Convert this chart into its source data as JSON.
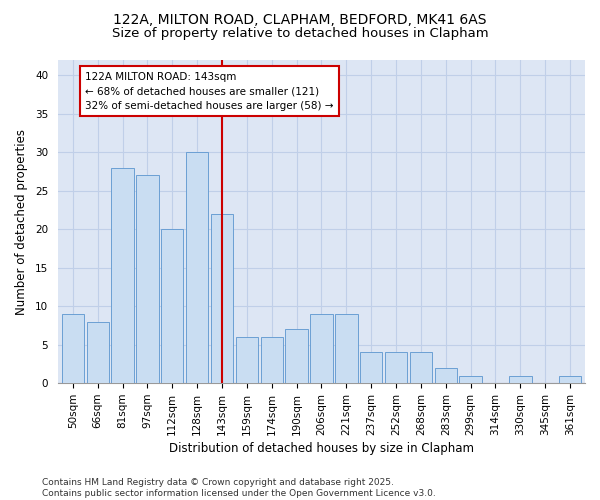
{
  "title1": "122A, MILTON ROAD, CLAPHAM, BEDFORD, MK41 6AS",
  "title2": "Size of property relative to detached houses in Clapham",
  "xlabel": "Distribution of detached houses by size in Clapham",
  "ylabel": "Number of detached properties",
  "categories": [
    "50sqm",
    "66sqm",
    "81sqm",
    "97sqm",
    "112sqm",
    "128sqm",
    "143sqm",
    "159sqm",
    "174sqm",
    "190sqm",
    "206sqm",
    "221sqm",
    "237sqm",
    "252sqm",
    "268sqm",
    "283sqm",
    "299sqm",
    "314sqm",
    "330sqm",
    "345sqm",
    "361sqm"
  ],
  "values": [
    9,
    8,
    28,
    27,
    20,
    30,
    22,
    6,
    6,
    7,
    9,
    9,
    4,
    4,
    4,
    2,
    1,
    0,
    1,
    0,
    1
  ],
  "bar_color": "#c9ddf2",
  "bar_edgecolor": "#6b9fd4",
  "vline_x_index": 6,
  "vline_color": "#cc0000",
  "annotation_line1": "122A MILTON ROAD: 143sqm",
  "annotation_line2": "← 68% of detached houses are smaller (121)",
  "annotation_line3": "32% of semi-detached houses are larger (58) →",
  "annotation_box_color": "#ffffff",
  "annotation_box_edgecolor": "#cc0000",
  "ylim": [
    0,
    42
  ],
  "yticks": [
    0,
    5,
    10,
    15,
    20,
    25,
    30,
    35,
    40
  ],
  "grid_color": "#c0cfe8",
  "bg_color": "#dde6f4",
  "footer_line1": "Contains HM Land Registry data © Crown copyright and database right 2025.",
  "footer_line2": "Contains public sector information licensed under the Open Government Licence v3.0.",
  "title_fontsize": 10,
  "subtitle_fontsize": 9.5,
  "axis_label_fontsize": 8.5,
  "tick_fontsize": 7.5,
  "annotation_fontsize": 7.5,
  "footer_fontsize": 6.5
}
